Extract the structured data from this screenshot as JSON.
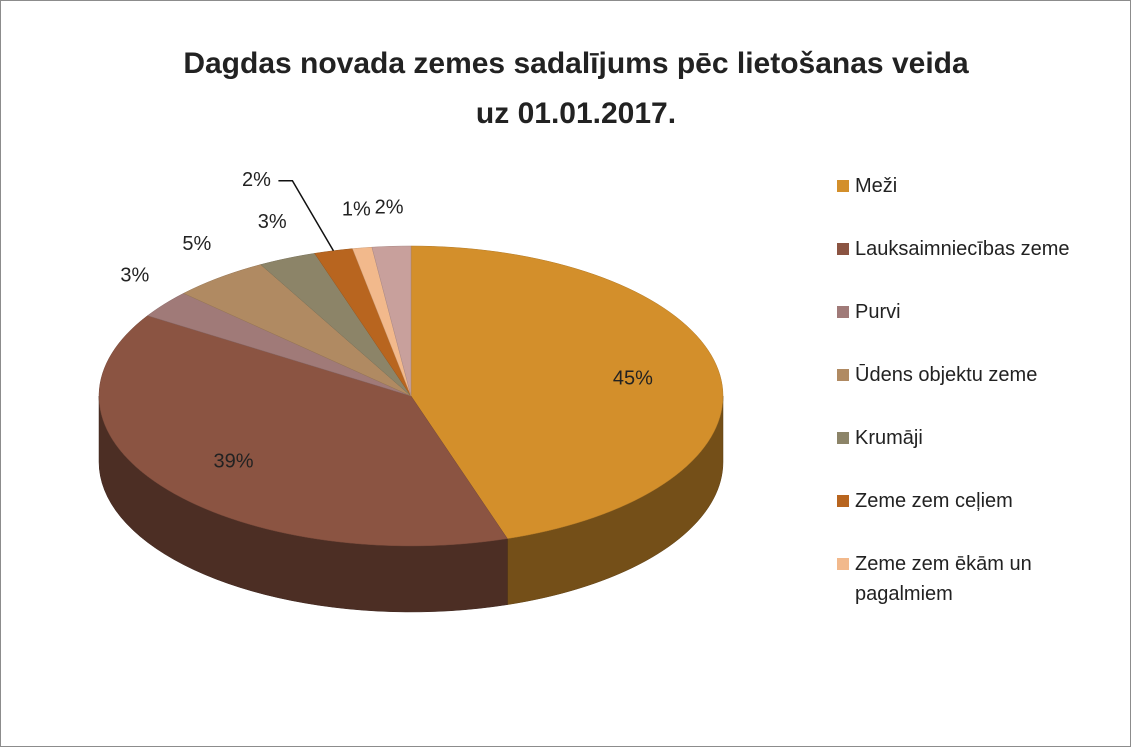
{
  "chart_data": {
    "type": "pie3d",
    "title": [
      "Dagdas novada zemes sadalījums pēc lietošanas veida",
      "uz 01.01.2017."
    ],
    "categories": [
      "Meži",
      "Lauksaimniecības zeme",
      "Purvi",
      "Ūdens objektu zeme",
      "Krumāji",
      "Zeme zem ceļiem",
      "Zeme zem ēkām un pagalmiem",
      null
    ],
    "values": [
      45,
      39,
      3,
      5,
      3,
      2,
      1,
      2
    ],
    "value_labels": [
      "45%",
      "39%",
      "3%",
      "5%",
      "3%",
      "2%",
      "1%",
      "2%"
    ],
    "colors": [
      "#d38f2b",
      "#8b5442",
      "#a07a78",
      "#b08a62",
      "#8c8468",
      "#b8651f",
      "#f2b98c",
      "#c8a09c"
    ],
    "legend": "right"
  }
}
